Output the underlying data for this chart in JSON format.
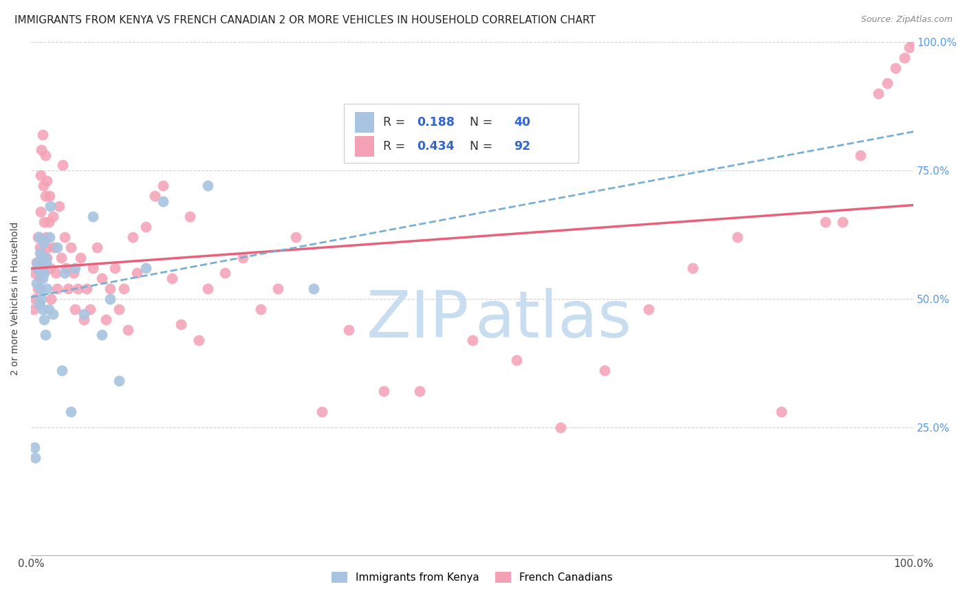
{
  "title": "IMMIGRANTS FROM KENYA VS FRENCH CANADIAN 2 OR MORE VEHICLES IN HOUSEHOLD CORRELATION CHART",
  "source": "Source: ZipAtlas.com",
  "ylabel": "2 or more Vehicles in Household",
  "xlim": [
    0,
    1
  ],
  "ylim": [
    0,
    1
  ],
  "r_kenya": 0.188,
  "n_kenya": 40,
  "r_french": 0.434,
  "n_french": 92,
  "color_kenya": "#a8c4e0",
  "color_french": "#f4a0b5",
  "line_color_kenya": "#7aafd4",
  "line_color_french": "#e8607a",
  "watermark_zip_color": "#c8ddef",
  "watermark_atlas_color": "#c8ddef",
  "background_color": "#ffffff",
  "tick_label_color_right": "#5599ee",
  "kenya_x": [
    0.004,
    0.005,
    0.006,
    0.007,
    0.008,
    0.009,
    0.009,
    0.01,
    0.01,
    0.011,
    0.011,
    0.012,
    0.012,
    0.013,
    0.013,
    0.014,
    0.015,
    0.015,
    0.016,
    0.016,
    0.017,
    0.018,
    0.02,
    0.021,
    0.022,
    0.025,
    0.03,
    0.035,
    0.038,
    0.045,
    0.05,
    0.06,
    0.07,
    0.08,
    0.09,
    0.1,
    0.13,
    0.15,
    0.2,
    0.32
  ],
  "kenya_y": [
    0.21,
    0.19,
    0.53,
    0.57,
    0.56,
    0.62,
    0.49,
    0.59,
    0.55,
    0.52,
    0.56,
    0.5,
    0.57,
    0.54,
    0.48,
    0.61,
    0.46,
    0.55,
    0.58,
    0.43,
    0.57,
    0.52,
    0.48,
    0.62,
    0.68,
    0.47,
    0.6,
    0.36,
    0.55,
    0.28,
    0.56,
    0.47,
    0.66,
    0.43,
    0.5,
    0.34,
    0.56,
    0.69,
    0.72,
    0.52
  ],
  "french_x": [
    0.003,
    0.004,
    0.005,
    0.006,
    0.007,
    0.008,
    0.008,
    0.009,
    0.01,
    0.01,
    0.011,
    0.011,
    0.012,
    0.012,
    0.013,
    0.013,
    0.014,
    0.015,
    0.015,
    0.016,
    0.016,
    0.017,
    0.018,
    0.018,
    0.019,
    0.02,
    0.021,
    0.022,
    0.023,
    0.025,
    0.026,
    0.028,
    0.03,
    0.032,
    0.034,
    0.036,
    0.038,
    0.04,
    0.042,
    0.045,
    0.048,
    0.05,
    0.053,
    0.056,
    0.06,
    0.063,
    0.067,
    0.07,
    0.075,
    0.08,
    0.085,
    0.09,
    0.095,
    0.1,
    0.105,
    0.11,
    0.115,
    0.12,
    0.13,
    0.14,
    0.15,
    0.16,
    0.17,
    0.18,
    0.19,
    0.2,
    0.22,
    0.24,
    0.26,
    0.28,
    0.3,
    0.33,
    0.36,
    0.4,
    0.44,
    0.5,
    0.55,
    0.6,
    0.65,
    0.7,
    0.75,
    0.8,
    0.85,
    0.9,
    0.92,
    0.94,
    0.96,
    0.97,
    0.98,
    0.99,
    0.995,
    1.0
  ],
  "french_y": [
    0.48,
    0.55,
    0.5,
    0.57,
    0.56,
    0.62,
    0.52,
    0.49,
    0.6,
    0.54,
    0.67,
    0.74,
    0.58,
    0.79,
    0.82,
    0.56,
    0.72,
    0.65,
    0.55,
    0.7,
    0.78,
    0.62,
    0.58,
    0.73,
    0.6,
    0.65,
    0.7,
    0.56,
    0.5,
    0.66,
    0.6,
    0.55,
    0.52,
    0.68,
    0.58,
    0.76,
    0.62,
    0.56,
    0.52,
    0.6,
    0.55,
    0.48,
    0.52,
    0.58,
    0.46,
    0.52,
    0.48,
    0.56,
    0.6,
    0.54,
    0.46,
    0.52,
    0.56,
    0.48,
    0.52,
    0.44,
    0.62,
    0.55,
    0.64,
    0.7,
    0.72,
    0.54,
    0.45,
    0.66,
    0.42,
    0.52,
    0.55,
    0.58,
    0.48,
    0.52,
    0.62,
    0.28,
    0.44,
    0.32,
    0.32,
    0.42,
    0.38,
    0.25,
    0.36,
    0.48,
    0.56,
    0.62,
    0.28,
    0.65,
    0.65,
    0.78,
    0.9,
    0.92,
    0.95,
    0.97,
    0.99,
    1.0
  ]
}
